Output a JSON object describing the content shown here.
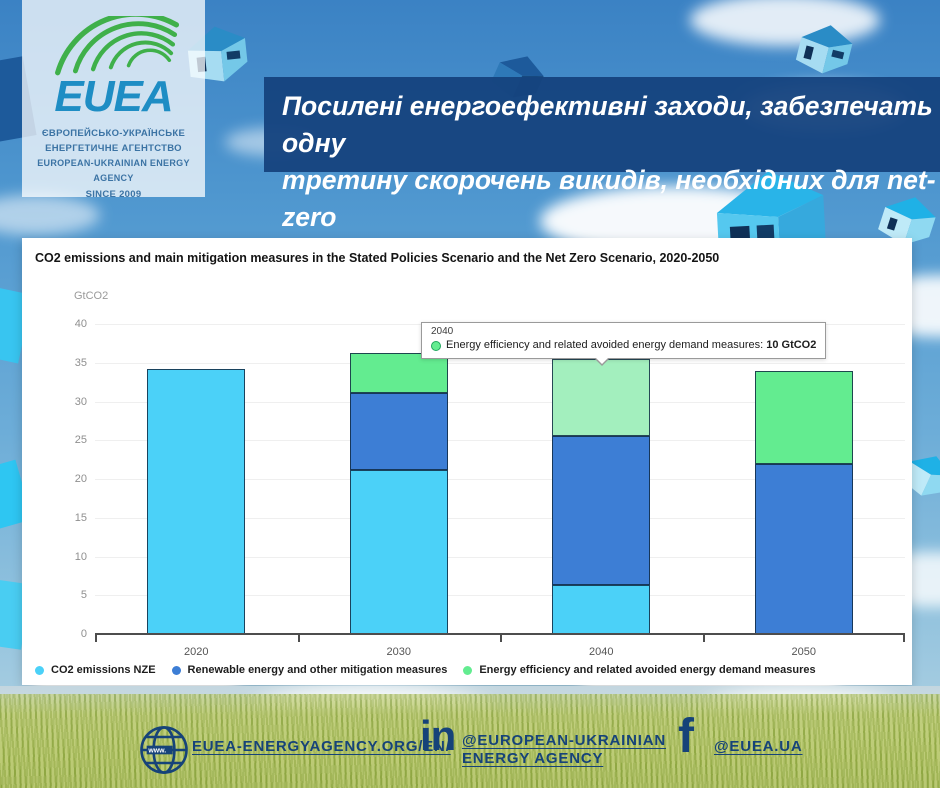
{
  "logo_card": {
    "wordmark": "EUEA",
    "line1": "ЄВРОПЕЙСЬКО-УКРАЇНСЬКЕ",
    "line2": "ЕНЕРГЕТИЧНЕ АГЕНТСТВО",
    "line3": "EUROPEAN-UKRAINIAN ENERGY AGENCY",
    "line4": "SINCE 2009",
    "arc_color": "#3fb04a",
    "wordmark_color": "#1e8dc4"
  },
  "banner": {
    "line1": "Посилені енергоефективні заходи, забезпечать одну",
    "line2": "третину скорочень викидів, необхідних для net-zero",
    "bg_color": "#16447F"
  },
  "chart_data": {
    "type": "bar",
    "stacked": true,
    "title": "CO2 emissions and main mitigation measures in the Stated Policies Scenario and the Net Zero Scenario, 2020-2050",
    "ylabel": "GtCO2",
    "xlabel": "",
    "ylim": [
      0,
      40
    ],
    "ytick_step": 5,
    "grid": true,
    "legend_position": "bottom",
    "categories": [
      "2020",
      "2030",
      "2040",
      "2050"
    ],
    "series": [
      {
        "name": "CO2 emissions NZE",
        "color": "#4BD1F8",
        "values": [
          34.2,
          21.2,
          6.3,
          0
        ]
      },
      {
        "name": "Renewable energy and other mitigation measures",
        "color": "#3D7ED5",
        "values": [
          0,
          9.9,
          19.2,
          22
        ]
      },
      {
        "name": "Energy efficiency and related avoided energy demand measures",
        "color": "#63EC90",
        "values": [
          0,
          5.1,
          10,
          12
        ]
      }
    ],
    "highlight": {
      "category": "2040",
      "series_index": 2,
      "color": "#A3EFBE"
    },
    "tooltip": {
      "category": "2040",
      "label": "Energy efficiency and related avoided energy demand measures: ",
      "value_bold": "10 GtCO2",
      "marker_color": "#63EC90"
    }
  },
  "footer": {
    "website_label": "EUEA-ENERGYAGENCY.ORG/EN/",
    "linkedin_glyph": "in",
    "linkedin_line1": "@EUROPEAN-UKRAINIAN",
    "linkedin_line2": "ENERGY AGENCY",
    "facebook_glyph": "f",
    "facebook_label": "@EUEA.UA",
    "accent_color": "#164379"
  }
}
